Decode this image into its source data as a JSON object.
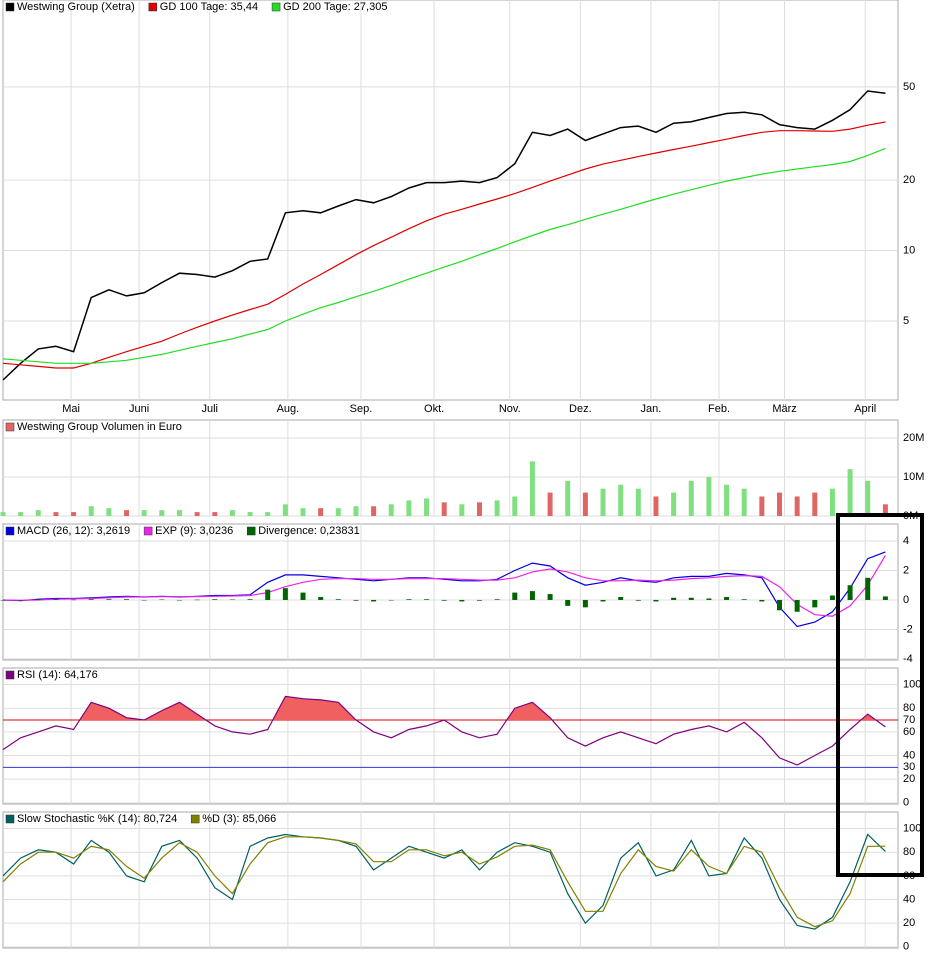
{
  "chart_data": [
    {
      "type": "line",
      "yscale": "log",
      "xlim": [
        0,
        355
      ],
      "ylim": [
        2.3,
        117.5
      ],
      "xticks": [
        {
          "value": 27,
          "label": "Mai"
        },
        {
          "value": 54,
          "label": "Juni"
        },
        {
          "value": 82,
          "label": "Juli"
        },
        {
          "value": 113,
          "label": "Aug."
        },
        {
          "value": 142,
          "label": "Sep."
        },
        {
          "value": 171,
          "label": "Okt."
        },
        {
          "value": 201,
          "label": "Nov."
        },
        {
          "value": 229,
          "label": "Dez."
        },
        {
          "value": 257,
          "label": "Jan."
        },
        {
          "value": 284,
          "label": "Feb."
        },
        {
          "value": 310,
          "label": "März"
        },
        {
          "value": 342,
          "label": "April"
        }
      ],
      "yticks": [
        5,
        10,
        20,
        50
      ],
      "grid": true,
      "x": [
        0,
        7,
        14,
        21,
        28,
        35,
        42,
        49,
        56,
        63,
        70,
        77,
        84,
        91,
        98,
        105,
        112,
        119,
        126,
        133,
        140,
        147,
        154,
        161,
        168,
        175,
        182,
        189,
        196,
        203,
        210,
        217,
        224,
        231,
        238,
        245,
        252,
        259,
        266,
        273,
        280,
        287,
        294,
        301,
        308,
        315,
        322,
        329,
        336,
        343,
        350
      ],
      "series": [
        {
          "name": "Westwing Group (Xetra)",
          "color": "#000000",
          "values": [
            2.8,
            3.3,
            3.8,
            3.9,
            3.7,
            6.3,
            6.8,
            6.4,
            6.6,
            7.3,
            8.0,
            7.9,
            7.7,
            8.2,
            9.0,
            9.2,
            14.5,
            14.8,
            14.5,
            15.5,
            16.5,
            16.0,
            17.0,
            18.5,
            19.5,
            19.5,
            19.8,
            19.5,
            20.5,
            23.5,
            32.0,
            31.0,
            33.0,
            29.5,
            31.5,
            33.5,
            34.0,
            32.0,
            35.0,
            35.5,
            37.0,
            38.5,
            39.0,
            38.0,
            34.5,
            33.5,
            33.0,
            36.0,
            40.0,
            48.0,
            47.0
          ]
        },
        {
          "name": "GD 100 Tage: 35,44",
          "color": "#e00000",
          "values": [
            3.3,
            3.25,
            3.2,
            3.15,
            3.15,
            3.3,
            3.5,
            3.7,
            3.9,
            4.1,
            4.4,
            4.7,
            5.0,
            5.3,
            5.6,
            5.9,
            6.5,
            7.2,
            7.9,
            8.7,
            9.6,
            10.5,
            11.4,
            12.4,
            13.4,
            14.3,
            15.0,
            15.8,
            16.6,
            17.5,
            18.6,
            19.8,
            21.0,
            22.3,
            23.4,
            24.3,
            25.2,
            26.1,
            27.0,
            27.9,
            28.9,
            29.9,
            31.0,
            32.0,
            32.5,
            32.5,
            32.4,
            32.3,
            33.0,
            34.3,
            35.4
          ]
        },
        {
          "name": "GD 200 Tage: 27,305",
          "color": "#22dd22",
          "values": [
            3.45,
            3.4,
            3.35,
            3.3,
            3.3,
            3.3,
            3.35,
            3.4,
            3.5,
            3.6,
            3.75,
            3.9,
            4.05,
            4.2,
            4.4,
            4.6,
            5.0,
            5.35,
            5.7,
            6.0,
            6.35,
            6.7,
            7.1,
            7.55,
            8.0,
            8.5,
            9.0,
            9.6,
            10.2,
            10.9,
            11.6,
            12.3,
            12.9,
            13.6,
            14.3,
            15.0,
            15.8,
            16.6,
            17.4,
            18.2,
            19.0,
            19.8,
            20.5,
            21.2,
            21.8,
            22.3,
            22.8,
            23.3,
            24.0,
            25.5,
            27.3
          ]
        }
      ]
    },
    {
      "type": "bar",
      "xlim": [
        0,
        355
      ],
      "ylim": [
        0,
        24600000
      ],
      "yticks": [
        {
          "value": 0,
          "label": "0M"
        },
        {
          "value": 10000000,
          "label": "10M"
        },
        {
          "value": 20000000,
          "label": "20M"
        }
      ],
      "grid": true,
      "x": [
        0,
        7,
        14,
        21,
        28,
        35,
        42,
        49,
        56,
        63,
        70,
        77,
        84,
        91,
        98,
        105,
        112,
        119,
        126,
        133,
        140,
        147,
        154,
        161,
        168,
        175,
        182,
        189,
        196,
        203,
        210,
        217,
        224,
        231,
        238,
        245,
        252,
        259,
        266,
        273,
        280,
        287,
        294,
        301,
        308,
        315,
        322,
        329,
        336,
        343,
        350
      ],
      "series": [
        {
          "name": "Westwing Group Volumen in Euro",
          "color": "#e06666",
          "values": [
            1000000,
            1000000,
            1500000,
            1000000,
            1000000,
            2500000,
            2000000,
            1500000,
            1500000,
            1500000,
            1500000,
            1000000,
            1000000,
            1500000,
            1000000,
            1000000,
            3000000,
            2000000,
            2000000,
            2000000,
            2500000,
            2500000,
            3000000,
            4000000,
            4500000,
            3500000,
            3000000,
            3500000,
            4000000,
            5000000,
            14000000,
            6000000,
            9000000,
            6000000,
            7000000,
            8000000,
            7000000,
            5000000,
            6000000,
            9000000,
            10000000,
            8000000,
            7000000,
            5000000,
            6000000,
            5000000,
            6000000,
            7000000,
            12000000,
            9000000,
            3000000
          ],
          "colors": [
            "#80e080",
            "#80e080",
            "#80e080",
            "#e06666",
            "#e06666",
            "#80e080",
            "#80e080",
            "#e06666",
            "#80e080",
            "#80e080",
            "#80e080",
            "#e06666",
            "#e06666",
            "#80e080",
            "#80e080",
            "#80e080",
            "#80e080",
            "#80e080",
            "#e06666",
            "#80e080",
            "#80e080",
            "#e06666",
            "#80e080",
            "#80e080",
            "#80e080",
            "#e06666",
            "#80e080",
            "#e06666",
            "#80e080",
            "#80e080",
            "#80e080",
            "#e06666",
            "#80e080",
            "#e06666",
            "#80e080",
            "#80e080",
            "#80e080",
            "#e06666",
            "#80e080",
            "#80e080",
            "#80e080",
            "#80e080",
            "#80e080",
            "#e06666",
            "#e06666",
            "#e06666",
            "#e06666",
            "#80e080",
            "#80e080",
            "#80e080",
            "#e06666"
          ]
        }
      ]
    },
    {
      "type": "line",
      "xlim": [
        0,
        355
      ],
      "ylim": [
        -4.07,
        5.15
      ],
      "yticks": [
        -4,
        -2,
        0,
        2,
        4
      ],
      "grid": true,
      "x": [
        0,
        7,
        14,
        21,
        28,
        35,
        42,
        49,
        56,
        63,
        70,
        77,
        84,
        91,
        98,
        105,
        112,
        119,
        126,
        133,
        140,
        147,
        154,
        161,
        168,
        175,
        182,
        189,
        196,
        203,
        210,
        217,
        224,
        231,
        238,
        245,
        252,
        259,
        266,
        273,
        280,
        287,
        294,
        301,
        308,
        315,
        322,
        329,
        336,
        343,
        350
      ],
      "series": [
        {
          "name": "MACD (26, 12): 3,2619",
          "color": "#0000dd",
          "values": [
            0,
            -0.05,
            0.05,
            0.1,
            0.1,
            0.15,
            0.2,
            0.25,
            0.2,
            0.25,
            0.2,
            0.25,
            0.3,
            0.3,
            0.35,
            1.2,
            1.7,
            1.7,
            1.6,
            1.5,
            1.4,
            1.3,
            1.4,
            1.5,
            1.5,
            1.4,
            1.3,
            1.3,
            1.4,
            2.0,
            2.5,
            2.3,
            1.5,
            1.0,
            1.2,
            1.5,
            1.3,
            1.2,
            1.5,
            1.6,
            1.6,
            1.8,
            1.7,
            1.5,
            -0.5,
            -1.8,
            -1.5,
            -0.8,
            0.8,
            2.8,
            3.26
          ]
        },
        {
          "name": "EXP (9): 3,0236",
          "color": "#ee22ee",
          "values": [
            0,
            -0.02,
            0,
            0.05,
            0.08,
            0.1,
            0.15,
            0.2,
            0.2,
            0.22,
            0.22,
            0.23,
            0.25,
            0.27,
            0.3,
            0.5,
            0.9,
            1.2,
            1.4,
            1.45,
            1.45,
            1.4,
            1.4,
            1.45,
            1.45,
            1.45,
            1.4,
            1.35,
            1.35,
            1.5,
            1.9,
            2.1,
            1.9,
            1.5,
            1.3,
            1.3,
            1.35,
            1.3,
            1.35,
            1.45,
            1.5,
            1.6,
            1.65,
            1.6,
            0.9,
            -0.3,
            -1.0,
            -1.1,
            -0.4,
            1.0,
            3.02
          ]
        },
        {
          "name": "Divergence: 0,23831",
          "color": "#006400",
          "type": "bar",
          "values": [
            0,
            -0.03,
            0.05,
            0.05,
            0.02,
            0.05,
            0.05,
            0.05,
            0,
            0.03,
            -0.02,
            0.02,
            0.05,
            0.03,
            0.05,
            0.7,
            0.8,
            0.5,
            0.2,
            0.05,
            -0.05,
            -0.1,
            0,
            0.05,
            0.05,
            -0.05,
            -0.1,
            -0.05,
            0.05,
            0.5,
            0.6,
            0.4,
            -0.4,
            -0.5,
            -0.1,
            0.2,
            -0.05,
            -0.1,
            0.15,
            0.15,
            0.1,
            0.2,
            0.05,
            -0.1,
            -0.7,
            -0.8,
            -0.5,
            0.3,
            1.0,
            1.5,
            0.24
          ]
        }
      ]
    },
    {
      "type": "line",
      "xlim": [
        0,
        355
      ],
      "ylim": [
        -1,
        114
      ],
      "yticks": [
        0,
        20,
        40,
        60,
        80,
        100
      ],
      "grid": true,
      "ref_lines": [
        {
          "value": 70,
          "color": "#e00000"
        },
        {
          "value": 30,
          "color": "#3333dd"
        }
      ],
      "fill_above": 70,
      "fill_color": "#f06060",
      "x": [
        0,
        7,
        14,
        21,
        28,
        35,
        42,
        49,
        56,
        63,
        70,
        77,
        84,
        91,
        98,
        105,
        112,
        119,
        126,
        133,
        140,
        147,
        154,
        161,
        168,
        175,
        182,
        189,
        196,
        203,
        210,
        217,
        224,
        231,
        238,
        245,
        252,
        259,
        266,
        273,
        280,
        287,
        294,
        301,
        308,
        315,
        322,
        329,
        336,
        343,
        350
      ],
      "series": [
        {
          "name": "RSI (14): 64,176",
          "color": "#800080",
          "values": [
            45,
            55,
            60,
            65,
            62,
            85,
            80,
            72,
            70,
            78,
            85,
            75,
            65,
            60,
            58,
            62,
            90,
            88,
            87,
            85,
            70,
            60,
            55,
            62,
            65,
            70,
            60,
            55,
            58,
            80,
            85,
            72,
            55,
            48,
            55,
            60,
            55,
            50,
            58,
            62,
            65,
            60,
            68,
            55,
            38,
            32,
            40,
            48,
            62,
            75,
            64.2
          ]
        }
      ]
    },
    {
      "type": "line",
      "xlim": [
        0,
        355
      ],
      "ylim": [
        -1,
        114
      ],
      "yticks": [
        0,
        20,
        40,
        60,
        80,
        100
      ],
      "grid": true,
      "x": [
        0,
        7,
        14,
        21,
        28,
        35,
        42,
        49,
        56,
        63,
        70,
        77,
        84,
        91,
        98,
        105,
        112,
        119,
        126,
        133,
        140,
        147,
        154,
        161,
        168,
        175,
        182,
        189,
        196,
        203,
        210,
        217,
        224,
        231,
        238,
        245,
        252,
        259,
        266,
        273,
        280,
        287,
        294,
        301,
        308,
        315,
        322,
        329,
        336,
        343,
        350
      ],
      "series": [
        {
          "name": "Slow Stochastic %K (14): 80,724",
          "color": "#006060",
          "values": [
            60,
            75,
            82,
            80,
            70,
            90,
            80,
            60,
            55,
            85,
            90,
            75,
            50,
            40,
            85,
            92,
            95,
            93,
            92,
            90,
            85,
            65,
            75,
            85,
            80,
            75,
            82,
            65,
            80,
            88,
            85,
            80,
            45,
            20,
            35,
            75,
            88,
            60,
            65,
            90,
            60,
            62,
            92,
            75,
            40,
            18,
            15,
            25,
            55,
            95,
            80.7
          ]
        },
        {
          "name": "%D (3): 85,066",
          "color": "#808000",
          "values": [
            55,
            70,
            80,
            80,
            75,
            85,
            82,
            68,
            58,
            75,
            88,
            80,
            60,
            45,
            70,
            88,
            93,
            93,
            92,
            90,
            87,
            72,
            72,
            82,
            82,
            77,
            80,
            70,
            76,
            85,
            86,
            82,
            55,
            30,
            30,
            62,
            82,
            68,
            64,
            82,
            68,
            62,
            85,
            80,
            50,
            25,
            17,
            22,
            45,
            85,
            85.1
          ]
        }
      ]
    }
  ]
}
